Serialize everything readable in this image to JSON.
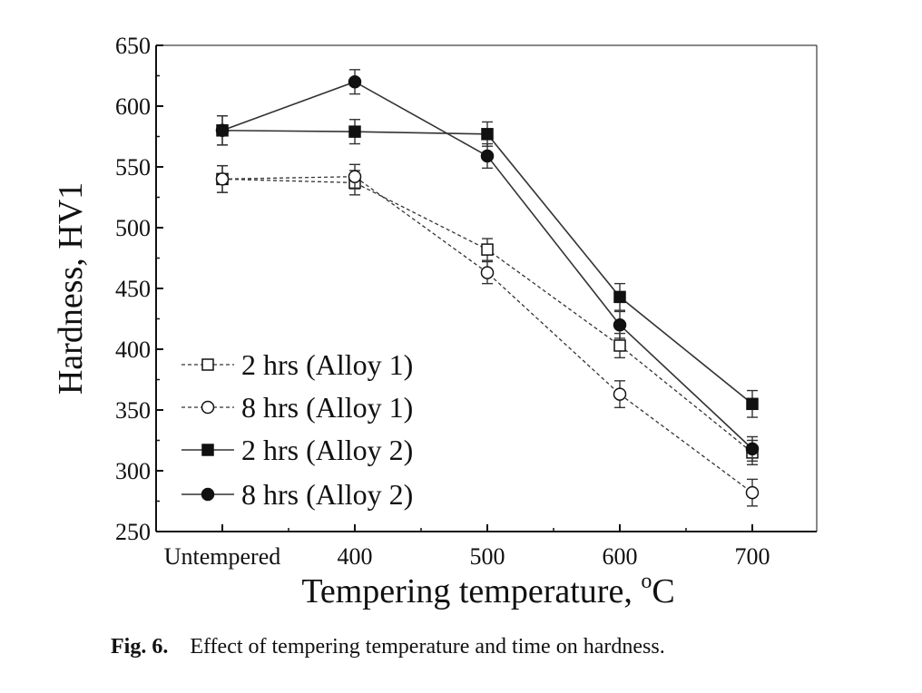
{
  "chart_data": {
    "type": "line",
    "categories": [
      "Untempered",
      "400",
      "500",
      "600",
      "700"
    ],
    "xlabel_main": "Tempering temperature, ",
    "xlabel_unit_sup": "o",
    "xlabel_unit": "C",
    "ylabel": "Hardness, HV1",
    "ylim": [
      250,
      650
    ],
    "yticks": [
      250,
      300,
      350,
      400,
      450,
      500,
      550,
      600,
      650
    ],
    "legend_position": "bottom-left",
    "series": [
      {
        "name": "2 hrs (Alloy 1)",
        "marker": "square-open",
        "line": "dashed",
        "values": [
          540,
          537,
          482,
          403,
          315
        ],
        "errors": [
          11,
          10,
          9,
          10,
          10
        ]
      },
      {
        "name": "8 hrs (Alloy 1)",
        "marker": "circle-open",
        "line": "dashed",
        "values": [
          540,
          542,
          463,
          363,
          282
        ],
        "errors": [
          11,
          10,
          9,
          11,
          11
        ]
      },
      {
        "name": "2 hrs (Alloy 2)",
        "marker": "square-filled",
        "line": "solid",
        "values": [
          580,
          579,
          577,
          443,
          355
        ],
        "errors": [
          12,
          10,
          10,
          11,
          11
        ]
      },
      {
        "name": "8 hrs (Alloy 2)",
        "marker": "circle-filled",
        "line": "solid",
        "values": [
          580,
          620,
          559,
          420,
          318
        ],
        "errors": [
          12,
          10,
          10,
          11,
          10
        ]
      }
    ]
  },
  "caption": {
    "label": "Fig. 6.",
    "text": "Effect of tempering temperature and time on hardness."
  }
}
